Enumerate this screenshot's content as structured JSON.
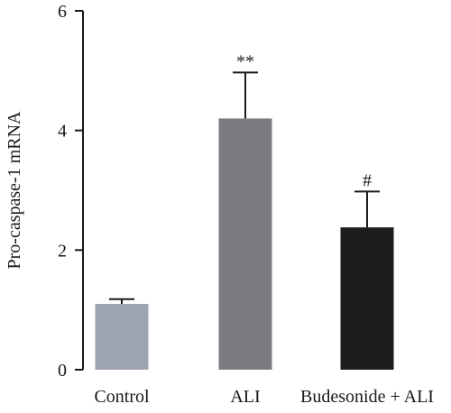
{
  "chart_data": {
    "type": "bar",
    "ylabel": "Pro-caspase-1 mRNA",
    "ylim": [
      0,
      6
    ],
    "yticks": [
      "0",
      "2",
      "4",
      "6"
    ],
    "grid": false,
    "categories": [
      "Control",
      "ALI",
      "Budesonide + ALI"
    ],
    "values": [
      1.1,
      4.2,
      2.38
    ],
    "errors": [
      0.08,
      0.77,
      0.6
    ],
    "annotations": [
      "",
      "**",
      "#"
    ],
    "colors": [
      "#9ea4b2",
      "#7b7c7f",
      "#1e1c1d"
    ]
  }
}
